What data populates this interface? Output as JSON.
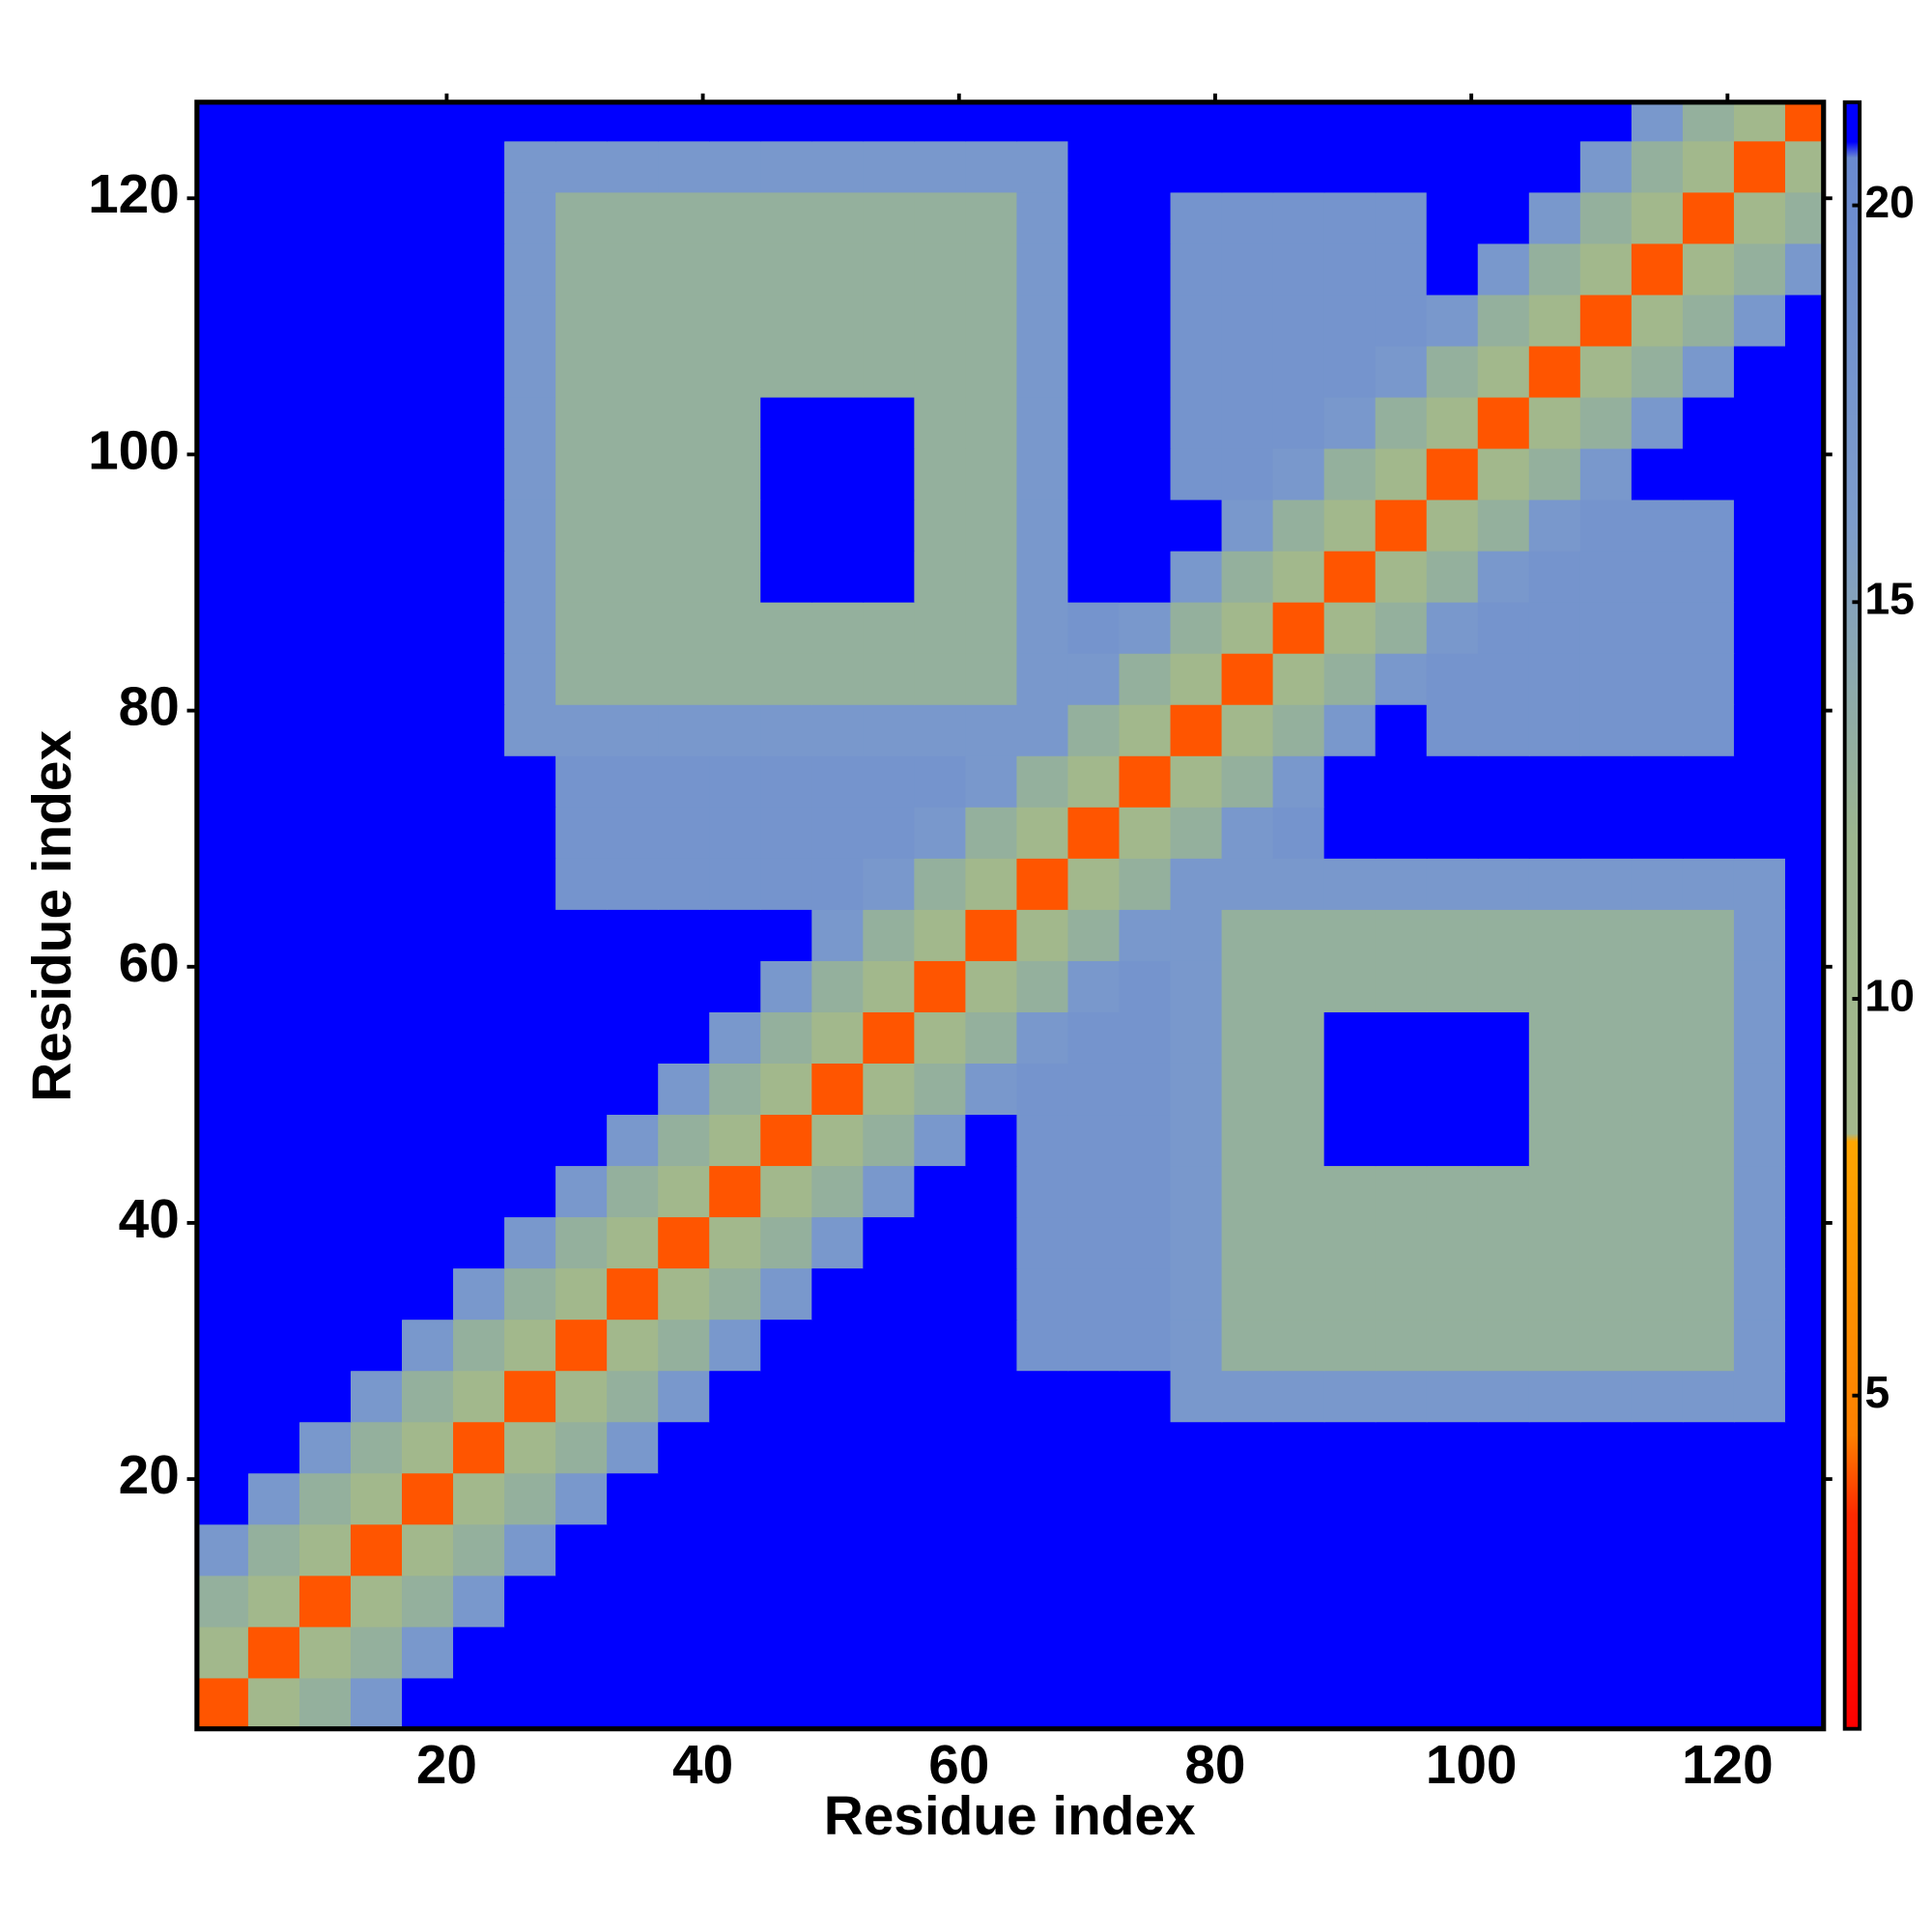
{
  "chart_data": {
    "type": "heatmap",
    "x": [
      2.5,
      6.5,
      10.5,
      14.5,
      18.5,
      22.5,
      26.5,
      30.5,
      34.5,
      38.5,
      42.5,
      46.5,
      50.5,
      54.5,
      58.5,
      62.5,
      66.5,
      70.5,
      74.5,
      78.5,
      82.5,
      86.5,
      90.5,
      94.5,
      98.5,
      102.5,
      106.5,
      110.5,
      114.5,
      118.5,
      122.5,
      126.5
    ],
    "y": [
      2.5,
      6.5,
      10.5,
      14.5,
      18.5,
      22.5,
      26.5,
      30.5,
      34.5,
      38.5,
      42.5,
      46.5,
      50.5,
      54.5,
      58.5,
      62.5,
      66.5,
      70.5,
      74.5,
      78.5,
      82.5,
      86.5,
      90.5,
      94.5,
      98.5,
      102.5,
      106.5,
      110.5,
      114.5,
      118.5,
      122.5,
      126.5
    ],
    "z": [
      [
        4,
        9,
        13,
        17,
        21,
        21,
        21,
        21,
        21,
        21,
        21,
        21,
        21,
        21,
        21,
        21,
        21,
        21,
        21,
        21,
        21,
        21,
        21,
        21,
        21,
        21,
        21,
        21,
        21,
        21,
        21,
        21
      ],
      [
        9,
        4,
        9,
        13,
        17,
        21,
        21,
        21,
        21,
        21,
        21,
        21,
        21,
        21,
        21,
        21,
        21,
        21,
        21,
        21,
        21,
        21,
        21,
        21,
        21,
        21,
        21,
        21,
        21,
        21,
        21,
        21
      ],
      [
        13,
        9,
        4,
        9,
        13,
        17,
        21,
        21,
        21,
        21,
        21,
        21,
        21,
        21,
        21,
        21,
        21,
        21,
        21,
        21,
        21,
        21,
        21,
        21,
        21,
        21,
        21,
        21,
        21,
        21,
        21,
        21
      ],
      [
        17,
        13,
        9,
        4,
        9,
        13,
        17,
        21,
        21,
        21,
        21,
        21,
        21,
        21,
        21,
        21,
        21,
        21,
        21,
        21,
        21,
        21,
        21,
        21,
        21,
        21,
        21,
        21,
        21,
        21,
        21,
        21
      ],
      [
        21,
        17,
        13,
        9,
        4,
        9,
        13,
        17,
        21,
        21,
        21,
        21,
        21,
        21,
        21,
        21,
        21,
        21,
        21,
        21,
        21,
        21,
        21,
        21,
        21,
        21,
        21,
        21,
        21,
        21,
        21,
        21
      ],
      [
        21,
        21,
        17,
        13,
        9,
        4,
        9,
        13,
        17,
        21,
        21,
        21,
        21,
        21,
        21,
        21,
        21,
        21,
        21,
        21,
        21,
        21,
        21,
        21,
        21,
        21,
        21,
        21,
        21,
        21,
        21,
        21
      ],
      [
        21,
        21,
        21,
        17,
        13,
        9,
        4,
        9,
        13,
        17,
        21,
        21,
        21,
        21,
        21,
        21,
        21,
        21,
        21,
        17,
        17,
        17,
        17,
        17,
        17,
        17,
        17,
        17,
        17,
        17,
        17,
        21
      ],
      [
        21,
        21,
        21,
        21,
        17,
        13,
        9,
        4,
        9,
        13,
        17,
        21,
        21,
        21,
        21,
        21,
        18,
        18,
        18,
        17,
        13,
        13,
        13,
        13,
        13,
        13,
        13,
        13,
        13,
        13,
        17,
        21
      ],
      [
        21,
        21,
        21,
        21,
        21,
        17,
        13,
        9,
        4,
        9,
        13,
        17,
        21,
        21,
        21,
        21,
        18,
        18,
        18,
        17,
        13,
        13,
        13,
        13,
        13,
        13,
        13,
        13,
        13,
        13,
        17,
        21
      ],
      [
        21,
        21,
        21,
        21,
        21,
        21,
        17,
        13,
        9,
        4,
        9,
        13,
        17,
        21,
        21,
        21,
        18,
        18,
        18,
        17,
        13,
        13,
        13,
        13,
        13,
        13,
        13,
        13,
        13,
        13,
        17,
        21
      ],
      [
        21,
        21,
        21,
        21,
        21,
        21,
        21,
        17,
        13,
        9,
        4,
        9,
        13,
        17,
        21,
        21,
        18,
        18,
        18,
        17,
        13,
        13,
        13,
        13,
        13,
        13,
        13,
        13,
        13,
        13,
        17,
        21
      ],
      [
        21,
        21,
        21,
        21,
        21,
        21,
        21,
        21,
        17,
        13,
        9,
        4,
        9,
        13,
        17,
        21,
        18,
        18,
        18,
        17,
        13,
        13,
        21,
        21,
        21,
        21,
        13,
        13,
        13,
        13,
        17,
        21
      ],
      [
        21,
        21,
        21,
        21,
        21,
        21,
        21,
        21,
        21,
        17,
        13,
        9,
        4,
        9,
        13,
        17,
        18,
        18,
        18,
        17,
        13,
        13,
        21,
        21,
        21,
        21,
        13,
        13,
        13,
        13,
        17,
        21
      ],
      [
        21,
        21,
        21,
        21,
        21,
        21,
        21,
        21,
        21,
        21,
        17,
        13,
        9,
        4,
        9,
        13,
        17,
        18,
        18,
        17,
        13,
        13,
        21,
        21,
        21,
        21,
        13,
        13,
        13,
        13,
        17,
        21
      ],
      [
        21,
        21,
        21,
        21,
        21,
        21,
        21,
        21,
        21,
        21,
        21,
        17,
        13,
        9,
        4,
        9,
        13,
        17,
        18,
        17,
        13,
        13,
        13,
        13,
        13,
        13,
        13,
        13,
        13,
        13,
        17,
        21
      ],
      [
        21,
        21,
        21,
        21,
        21,
        21,
        21,
        21,
        21,
        21,
        21,
        21,
        17,
        13,
        9,
        4,
        9,
        13,
        17,
        17,
        13,
        13,
        13,
        13,
        13,
        13,
        13,
        13,
        13,
        13,
        17,
        21
      ],
      [
        21,
        21,
        21,
        21,
        21,
        21,
        21,
        18,
        18,
        18,
        18,
        18,
        18,
        17,
        13,
        9,
        4,
        9,
        13,
        17,
        17,
        17,
        17,
        17,
        17,
        17,
        17,
        17,
        17,
        17,
        17,
        21
      ],
      [
        21,
        21,
        21,
        21,
        21,
        21,
        21,
        18,
        18,
        18,
        18,
        18,
        18,
        18,
        17,
        13,
        9,
        4,
        9,
        13,
        17,
        18,
        21,
        21,
        21,
        21,
        21,
        21,
        21,
        21,
        21,
        21
      ],
      [
        21,
        21,
        21,
        21,
        21,
        21,
        21,
        18,
        18,
        18,
        18,
        18,
        18,
        18,
        18,
        17,
        13,
        9,
        4,
        9,
        13,
        17,
        21,
        21,
        21,
        21,
        21,
        21,
        21,
        21,
        21,
        21
      ],
      [
        21,
        21,
        21,
        21,
        21,
        21,
        17,
        17,
        17,
        17,
        17,
        17,
        17,
        17,
        17,
        17,
        17,
        13,
        9,
        4,
        9,
        13,
        17,
        21,
        18,
        18,
        18,
        18,
        18,
        18,
        21,
        21
      ],
      [
        21,
        21,
        21,
        21,
        21,
        21,
        17,
        13,
        13,
        13,
        13,
        13,
        13,
        13,
        13,
        13,
        17,
        17,
        13,
        9,
        4,
        9,
        13,
        17,
        18,
        18,
        18,
        18,
        18,
        18,
        21,
        21
      ],
      [
        21,
        21,
        21,
        21,
        21,
        21,
        17,
        13,
        13,
        13,
        13,
        13,
        13,
        13,
        13,
        13,
        17,
        18,
        17,
        13,
        9,
        4,
        9,
        13,
        17,
        18,
        18,
        18,
        18,
        18,
        21,
        21
      ],
      [
        21,
        21,
        21,
        21,
        21,
        21,
        17,
        13,
        13,
        13,
        13,
        21,
        21,
        21,
        13,
        13,
        17,
        21,
        21,
        17,
        13,
        9,
        4,
        9,
        13,
        17,
        18,
        18,
        18,
        18,
        21,
        21
      ],
      [
        21,
        21,
        21,
        21,
        21,
        21,
        17,
        13,
        13,
        13,
        13,
        21,
        21,
        21,
        13,
        13,
        17,
        21,
        21,
        21,
        17,
        13,
        9,
        4,
        9,
        13,
        17,
        18,
        18,
        18,
        21,
        21
      ],
      [
        21,
        21,
        21,
        21,
        21,
        21,
        17,
        13,
        13,
        13,
        13,
        21,
        21,
        21,
        13,
        13,
        17,
        21,
        21,
        18,
        18,
        17,
        13,
        9,
        4,
        9,
        13,
        17,
        21,
        21,
        21,
        21
      ],
      [
        21,
        21,
        21,
        21,
        21,
        21,
        17,
        13,
        13,
        13,
        13,
        21,
        21,
        21,
        13,
        13,
        17,
        21,
        21,
        18,
        18,
        18,
        17,
        13,
        9,
        4,
        9,
        13,
        17,
        21,
        21,
        21
      ],
      [
        21,
        21,
        21,
        21,
        21,
        21,
        17,
        13,
        13,
        13,
        13,
        13,
        13,
        13,
        13,
        13,
        17,
        21,
        21,
        18,
        18,
        18,
        18,
        17,
        13,
        9,
        4,
        9,
        13,
        17,
        21,
        21
      ],
      [
        21,
        21,
        21,
        21,
        21,
        21,
        17,
        13,
        13,
        13,
        13,
        13,
        13,
        13,
        13,
        13,
        17,
        21,
        21,
        18,
        18,
        18,
        18,
        18,
        17,
        13,
        9,
        4,
        9,
        13,
        17,
        21
      ],
      [
        21,
        21,
        21,
        21,
        21,
        21,
        17,
        13,
        13,
        13,
        13,
        13,
        13,
        13,
        13,
        13,
        17,
        21,
        21,
        18,
        18,
        18,
        18,
        18,
        21,
        17,
        13,
        9,
        4,
        9,
        13,
        17
      ],
      [
        21,
        21,
        21,
        21,
        21,
        21,
        17,
        13,
        13,
        13,
        13,
        13,
        13,
        13,
        13,
        13,
        17,
        21,
        21,
        18,
        18,
        18,
        18,
        18,
        21,
        21,
        17,
        13,
        9,
        4,
        9,
        13
      ],
      [
        21,
        21,
        21,
        21,
        21,
        21,
        17,
        17,
        17,
        17,
        17,
        17,
        17,
        17,
        17,
        17,
        17,
        21,
        21,
        21,
        21,
        21,
        21,
        21,
        21,
        21,
        21,
        17,
        13,
        9,
        4,
        9
      ],
      [
        21,
        21,
        21,
        21,
        21,
        21,
        21,
        21,
        21,
        21,
        21,
        21,
        21,
        21,
        21,
        21,
        21,
        21,
        21,
        21,
        21,
        21,
        21,
        21,
        21,
        21,
        21,
        21,
        17,
        13,
        9,
        4
      ]
    ],
    "xlim": [
      0.5,
      127.5
    ],
    "ylim": [
      0.5,
      127.5
    ],
    "xticks": [
      20,
      40,
      60,
      80,
      100,
      120
    ],
    "yticks": [
      20,
      40,
      60,
      80,
      100,
      120
    ],
    "x_label": "Residue index",
    "y_label": "Residue index",
    "colorbar": {
      "lim": [
        0.8,
        21.3
      ],
      "ticks": [
        5,
        10,
        15,
        20
      ],
      "colorscale": [
        [
          0.8,
          "#ff0000"
        ],
        [
          3.5,
          "#ff2a00"
        ],
        [
          4.5,
          "#ff8000"
        ],
        [
          8.2,
          "#ffa500"
        ],
        [
          8.3,
          "#a4b88c"
        ],
        [
          12,
          "#9cb68e"
        ],
        [
          16,
          "#7d9ccb"
        ],
        [
          20.6,
          "#6a8ad0"
        ],
        [
          20.8,
          "#0000ff"
        ],
        [
          21.3,
          "#0000ff"
        ]
      ]
    }
  }
}
